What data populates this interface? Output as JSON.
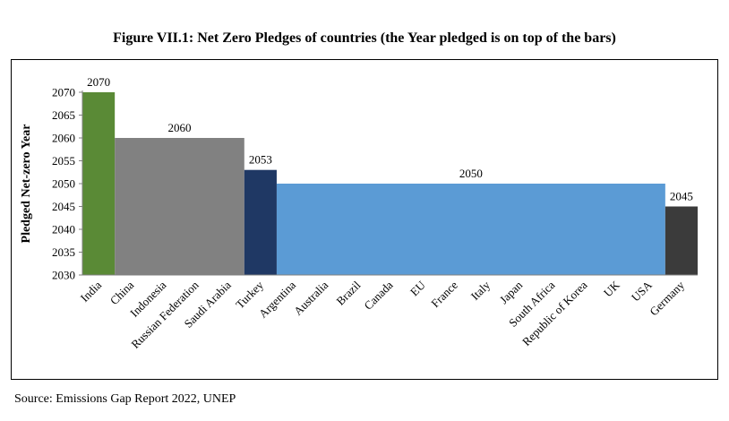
{
  "title": "Figure VII.1: Net Zero Pledges of countries (the Year pledged is on top of the bars)",
  "source": "Source: Emissions Gap Report 2022, UNEP",
  "colors": {
    "India": "#5a8a36",
    "2060": "#818181",
    "Turkey": "#1f3864",
    "2050": "#5b9bd5",
    "Germany": "#3b3b3b",
    "axis": "#808080"
  },
  "chart_data": {
    "type": "bar",
    "title": "Figure VII.1: Net Zero Pledges of countries (the Year pledged is on top of the bars)",
    "xlabel": "",
    "ylabel": "Pledged Net-zero Year",
    "ylim": [
      2030,
      2070
    ],
    "yticks": [
      2030,
      2035,
      2040,
      2045,
      2050,
      2055,
      2060,
      2065,
      2070
    ],
    "grid": false,
    "categories": [
      "India",
      "China",
      "Indonesia",
      "Russian Federation",
      "Saudi Arabia",
      "Turkey",
      "Argentina",
      "Australia",
      "Brazil",
      "Canada",
      "EU",
      "France",
      "Italy",
      "Japan",
      "South Africa",
      "Republic of Korea",
      "UK",
      "USA",
      "Germany"
    ],
    "values": [
      2070,
      2060,
      2060,
      2060,
      2060,
      2053,
      2050,
      2050,
      2050,
      2050,
      2050,
      2050,
      2050,
      2050,
      2050,
      2050,
      2050,
      2050,
      2045
    ],
    "groups": [
      {
        "label": "2070",
        "value": 2070,
        "categories": [
          "India"
        ],
        "color": "#5a8a36"
      },
      {
        "label": "2060",
        "value": 2060,
        "categories": [
          "China",
          "Indonesia",
          "Russian Federation",
          "Saudi Arabia"
        ],
        "color": "#818181"
      },
      {
        "label": "2053",
        "value": 2053,
        "categories": [
          "Turkey"
        ],
        "color": "#1f3864"
      },
      {
        "label": "2050",
        "value": 2050,
        "categories": [
          "Argentina",
          "Australia",
          "Brazil",
          "Canada",
          "EU",
          "France",
          "Italy",
          "Japan",
          "South Africa",
          "Republic of Korea",
          "UK",
          "USA"
        ],
        "color": "#5b9bd5"
      },
      {
        "label": "2045",
        "value": 2045,
        "categories": [
          "Germany"
        ],
        "color": "#3b3b3b"
      }
    ]
  }
}
